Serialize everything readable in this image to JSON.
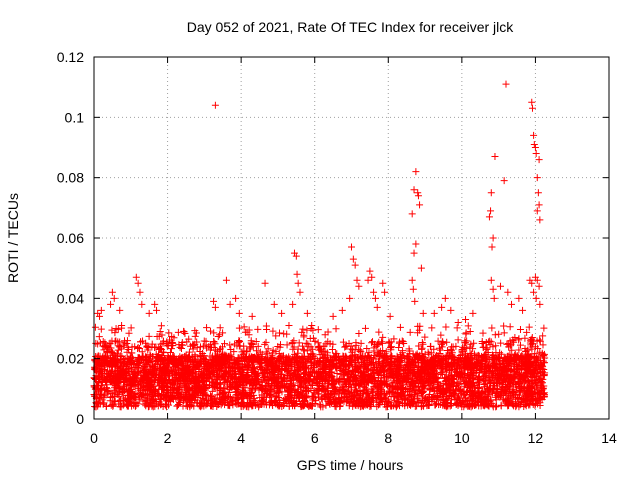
{
  "chart_data": {
    "type": "scatter",
    "title": "Day 052 of 2021, Rate Of TEC Index for receiver jlck",
    "xlabel": "GPS time / hours",
    "ylabel": "ROTI / TECUs",
    "xlim": [
      0,
      14
    ],
    "ylim": [
      0,
      0.12
    ],
    "x_ticks": [
      "0",
      "2",
      "4",
      "6",
      "8",
      "10",
      "12",
      "14"
    ],
    "y_ticks": [
      "0",
      "0.02",
      "0.04",
      "0.06",
      "0.08",
      "0.1",
      "0.12"
    ],
    "grid": true,
    "marker": "plus",
    "color": "#ff0000",
    "series": [
      {
        "values_note": "",
        "points": [
          [
            0.1,
            0.035
          ],
          [
            0.15,
            0.034
          ],
          [
            0.2,
            0.036
          ],
          [
            0.45,
            0.038
          ],
          [
            0.5,
            0.042
          ],
          [
            0.55,
            0.04
          ],
          [
            0.6,
            0.03
          ],
          [
            0.7,
            0.036
          ],
          [
            0.75,
            0.031
          ],
          [
            1.15,
            0.047
          ],
          [
            1.2,
            0.045
          ],
          [
            1.25,
            0.042
          ],
          [
            1.3,
            0.038
          ],
          [
            1.5,
            0.035
          ],
          [
            1.65,
            0.038
          ],
          [
            1.7,
            0.036
          ],
          [
            1.8,
            0.029
          ],
          [
            3.3,
            0.104
          ],
          [
            3.25,
            0.039
          ],
          [
            3.3,
            0.037
          ],
          [
            3.6,
            0.046
          ],
          [
            3.7,
            0.038
          ],
          [
            3.85,
            0.04
          ],
          [
            3.95,
            0.035
          ],
          [
            4.3,
            0.034
          ],
          [
            4.65,
            0.045
          ],
          [
            4.9,
            0.038
          ],
          [
            5.1,
            0.035
          ],
          [
            5.3,
            0.031
          ],
          [
            5.45,
            0.055
          ],
          [
            5.5,
            0.054
          ],
          [
            5.52,
            0.048
          ],
          [
            5.55,
            0.045
          ],
          [
            5.6,
            0.042
          ],
          [
            5.4,
            0.038
          ],
          [
            5.8,
            0.035
          ],
          [
            5.9,
            0.03
          ],
          [
            6.5,
            0.034
          ],
          [
            6.75,
            0.036
          ],
          [
            7.0,
            0.057
          ],
          [
            7.05,
            0.053
          ],
          [
            7.1,
            0.051
          ],
          [
            7.15,
            0.046
          ],
          [
            7.2,
            0.044
          ],
          [
            6.95,
            0.04
          ],
          [
            7.45,
            0.046
          ],
          [
            7.5,
            0.049
          ],
          [
            7.55,
            0.047
          ],
          [
            7.6,
            0.042
          ],
          [
            7.65,
            0.04
          ],
          [
            7.7,
            0.037
          ],
          [
            7.85,
            0.045
          ],
          [
            7.9,
            0.042
          ],
          [
            8.05,
            0.034
          ],
          [
            8.65,
            0.068
          ],
          [
            8.7,
            0.076
          ],
          [
            8.75,
            0.082
          ],
          [
            8.8,
            0.075
          ],
          [
            8.82,
            0.074
          ],
          [
            8.85,
            0.071
          ],
          [
            8.75,
            0.058
          ],
          [
            8.7,
            0.055
          ],
          [
            8.9,
            0.05
          ],
          [
            8.65,
            0.046
          ],
          [
            8.68,
            0.043
          ],
          [
            8.72,
            0.039
          ],
          [
            8.95,
            0.035
          ],
          [
            9.25,
            0.035
          ],
          [
            9.45,
            0.037
          ],
          [
            9.55,
            0.04
          ],
          [
            9.7,
            0.036
          ],
          [
            9.9,
            0.032
          ],
          [
            10.1,
            0.033
          ],
          [
            10.3,
            0.035
          ],
          [
            10.75,
            0.067
          ],
          [
            10.78,
            0.069
          ],
          [
            10.8,
            0.075
          ],
          [
            10.82,
            0.057
          ],
          [
            10.85,
            0.06
          ],
          [
            10.9,
            0.087
          ],
          [
            10.8,
            0.046
          ],
          [
            10.85,
            0.043
          ],
          [
            10.88,
            0.04
          ],
          [
            11.2,
            0.111
          ],
          [
            11.15,
            0.079
          ],
          [
            11.05,
            0.044
          ],
          [
            11.25,
            0.042
          ],
          [
            11.35,
            0.038
          ],
          [
            11.55,
            0.04
          ],
          [
            11.65,
            0.036
          ],
          [
            11.9,
            0.105
          ],
          [
            11.92,
            0.103
          ],
          [
            11.95,
            0.094
          ],
          [
            11.97,
            0.091
          ],
          [
            12.0,
            0.09
          ],
          [
            12.02,
            0.088
          ],
          [
            12.1,
            0.086
          ],
          [
            12.05,
            0.08
          ],
          [
            12.08,
            0.075
          ],
          [
            12.1,
            0.071
          ],
          [
            12.05,
            0.069
          ],
          [
            12.12,
            0.066
          ],
          [
            11.85,
            0.046
          ],
          [
            11.9,
            0.045
          ],
          [
            12.0,
            0.047
          ],
          [
            12.05,
            0.046
          ],
          [
            12.1,
            0.044
          ],
          [
            11.95,
            0.042
          ],
          [
            12.02,
            0.04
          ],
          [
            12.12,
            0.038
          ]
        ]
      }
    ]
  }
}
